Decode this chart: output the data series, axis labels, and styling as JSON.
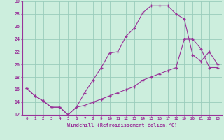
{
  "title": "",
  "xlabel": "Windchill (Refroidissement éolien,°C)",
  "ylabel": "",
  "bg_color": "#cceedd",
  "grid_color": "#99ccbb",
  "line_color": "#993399",
  "marker": "+",
  "xlim": [
    -0.5,
    23.5
  ],
  "ylim": [
    12,
    30
  ],
  "xticks": [
    0,
    1,
    2,
    3,
    4,
    5,
    6,
    7,
    8,
    9,
    10,
    11,
    12,
    13,
    14,
    15,
    16,
    17,
    18,
    19,
    20,
    21,
    22,
    23
  ],
  "yticks": [
    12,
    14,
    16,
    18,
    20,
    22,
    24,
    26,
    28,
    30
  ],
  "curve1_x": [
    0,
    1,
    2,
    3,
    4,
    5,
    6,
    7,
    8,
    9,
    10,
    11,
    12,
    13,
    14,
    15,
    16,
    17,
    18,
    19,
    20,
    21,
    22,
    23
  ],
  "curve1_y": [
    16.2,
    15.0,
    14.2,
    13.2,
    13.2,
    12.0,
    13.2,
    15.5,
    17.5,
    19.5,
    21.8,
    22.0,
    24.5,
    25.8,
    28.2,
    29.3,
    29.3,
    29.3,
    28.0,
    27.2,
    21.5,
    20.5,
    22.0,
    20.0
  ],
  "curve2_x": [
    0,
    1,
    2,
    3,
    4,
    5,
    6,
    7,
    8,
    9,
    10,
    11,
    12,
    13,
    14,
    15,
    16,
    17,
    18,
    19,
    20,
    21,
    22,
    23
  ],
  "curve2_y": [
    16.2,
    15.0,
    14.2,
    13.2,
    13.2,
    12.0,
    13.2,
    13.5,
    14.0,
    14.5,
    15.0,
    15.5,
    16.0,
    16.5,
    17.5,
    18.0,
    18.5,
    19.0,
    19.5,
    24.0,
    24.0,
    22.5,
    19.5,
    19.5
  ]
}
